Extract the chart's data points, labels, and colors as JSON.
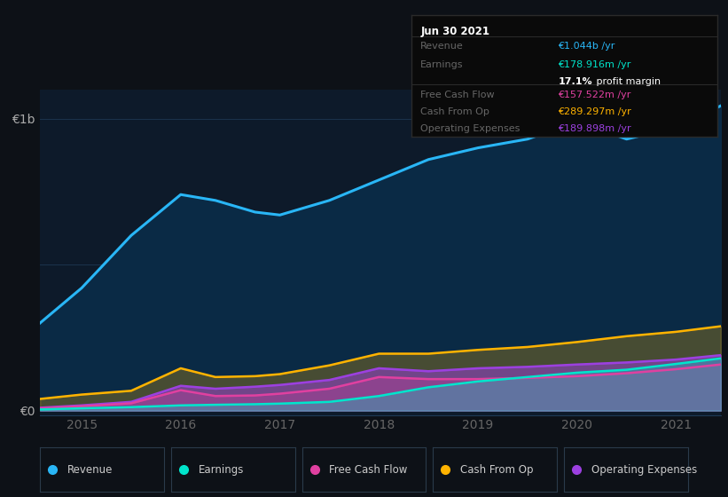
{
  "background_color": "#0d1117",
  "plot_bg_color": "#0d1a2a",
  "years": [
    2014.58,
    2015.0,
    2015.5,
    2016.0,
    2016.35,
    2016.75,
    2017.0,
    2017.5,
    2018.0,
    2018.5,
    2019.0,
    2019.5,
    2020.0,
    2020.5,
    2021.0,
    2021.45
  ],
  "revenue": [
    0.3,
    0.42,
    0.6,
    0.74,
    0.72,
    0.68,
    0.67,
    0.72,
    0.79,
    0.86,
    0.9,
    0.93,
    0.99,
    0.93,
    0.97,
    1.044
  ],
  "earnings": [
    0.004,
    0.008,
    0.012,
    0.018,
    0.02,
    0.022,
    0.024,
    0.03,
    0.05,
    0.08,
    0.1,
    0.115,
    0.13,
    0.14,
    0.16,
    0.179
  ],
  "free_cash_flow": [
    0.008,
    0.015,
    0.025,
    0.07,
    0.05,
    0.052,
    0.058,
    0.075,
    0.115,
    0.108,
    0.108,
    0.112,
    0.118,
    0.128,
    0.142,
    0.158
  ],
  "cash_from_op": [
    0.04,
    0.055,
    0.068,
    0.145,
    0.115,
    0.118,
    0.125,
    0.155,
    0.195,
    0.195,
    0.208,
    0.218,
    0.235,
    0.255,
    0.27,
    0.289
  ],
  "operating_expenses": [
    0.01,
    0.018,
    0.03,
    0.085,
    0.075,
    0.082,
    0.088,
    0.105,
    0.145,
    0.135,
    0.145,
    0.15,
    0.158,
    0.165,
    0.175,
    0.19
  ],
  "revenue_color": "#29b6f6",
  "earnings_color": "#00e5cc",
  "free_cash_flow_color": "#e040a0",
  "cash_from_op_color": "#ffb300",
  "operating_expenses_color": "#9c40e0",
  "revenue_fill_color": "#0a2a45",
  "ylabel_e0": "€0",
  "ylabel_e1b": "€1b",
  "xlabel_years": [
    "2015",
    "2016",
    "2017",
    "2018",
    "2019",
    "2020",
    "2021"
  ],
  "x_tick_positions": [
    2015,
    2016,
    2017,
    2018,
    2019,
    2020,
    2021
  ],
  "info_box": {
    "date": "Jun 30 2021",
    "revenue_label": "Revenue",
    "revenue_value": "€1.044b /yr",
    "revenue_color": "#29b6f6",
    "earnings_label": "Earnings",
    "earnings_value": "€178.916m /yr",
    "earnings_color": "#00e5cc",
    "margin_text": "17.1%",
    "margin_suffix": " profit margin",
    "fcf_label": "Free Cash Flow",
    "fcf_value": "€157.522m /yr",
    "fcf_color": "#e040a0",
    "cashop_label": "Cash From Op",
    "cashop_value": "€289.297m /yr",
    "cashop_color": "#ffb300",
    "opex_label": "Operating Expenses",
    "opex_value": "€189.898m /yr",
    "opex_color": "#9c40e0",
    "bg_color": "#0a0a0a",
    "border_color": "#2a2a2a",
    "label_color": "#666666",
    "date_color": "#ffffff"
  },
  "legend_items": [
    {
      "label": "Revenue",
      "color": "#29b6f6"
    },
    {
      "label": "Earnings",
      "color": "#00e5cc"
    },
    {
      "label": "Free Cash Flow",
      "color": "#e040a0"
    },
    {
      "label": "Cash From Op",
      "color": "#ffb300"
    },
    {
      "label": "Operating Expenses",
      "color": "#9c40e0"
    }
  ]
}
